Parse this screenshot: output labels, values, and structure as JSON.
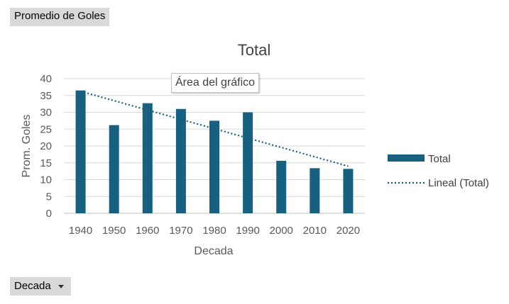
{
  "field_buttons": {
    "value_field": "Promedio de Goles",
    "axis_field": "Decada"
  },
  "tooltip": "Área del gráfico",
  "chart_data": {
    "type": "bar",
    "title": "Total",
    "xlabel": "Decada",
    "ylabel": "Prom. Goles",
    "categories": [
      "1940",
      "1950",
      "1960",
      "1970",
      "1980",
      "1990",
      "2000",
      "2010",
      "2020"
    ],
    "series": [
      {
        "name": "Total",
        "values": [
          36.5,
          26.2,
          32.7,
          31.0,
          27.5,
          30.0,
          15.6,
          13.4,
          13.2
        ],
        "color": "#17607f"
      }
    ],
    "trendline": {
      "name": "Lineal (Total)",
      "type": "linear",
      "color": "#17607f",
      "style": "dotted"
    },
    "ylim": [
      0,
      40
    ],
    "yticks": [
      0,
      5,
      10,
      15,
      20,
      25,
      30,
      35,
      40
    ],
    "grid": true,
    "legend_position": "right"
  }
}
